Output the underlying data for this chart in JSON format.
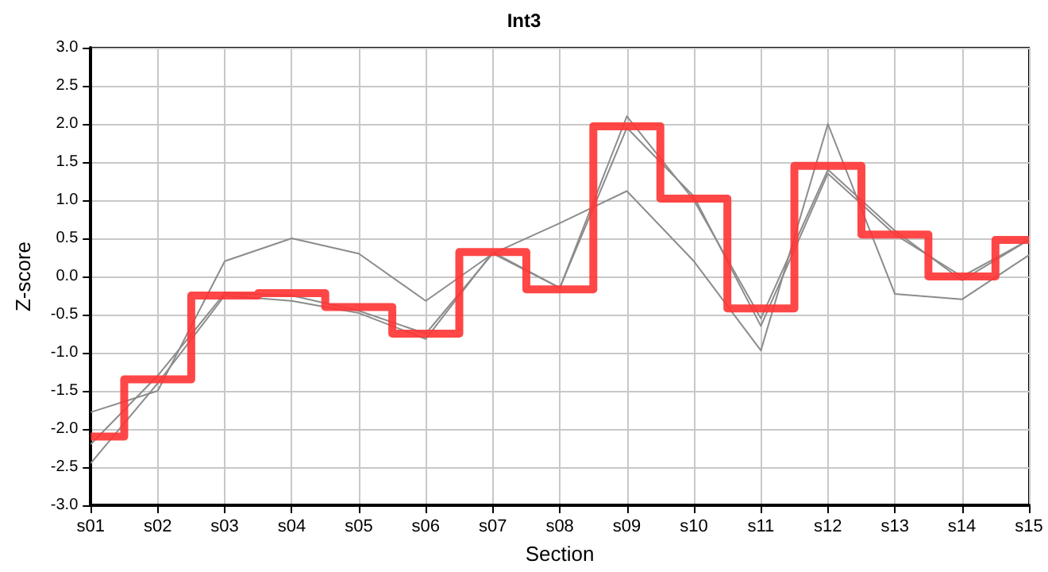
{
  "chart_data": {
    "type": "line",
    "title": "Int3",
    "xlabel": "Section",
    "ylabel": "Z-score",
    "categories": [
      "s01",
      "s02",
      "s03",
      "s04",
      "s05",
      "s06",
      "s07",
      "s08",
      "s09",
      "s10",
      "s11",
      "s12",
      "s13",
      "s14",
      "s15"
    ],
    "ylim": [
      -3,
      3
    ],
    "yticks": [
      {
        "value": -3,
        "label": "-3.0"
      },
      {
        "value": -2.5,
        "label": "-2.5"
      },
      {
        "value": -2,
        "label": "-2.0"
      },
      {
        "value": -1.5,
        "label": "-1.5"
      },
      {
        "value": -1,
        "label": "-1.0"
      },
      {
        "value": -0.5,
        "label": "-0.5"
      },
      {
        "value": 0,
        "label": "0.0"
      },
      {
        "value": 0.5,
        "label": "0.5"
      },
      {
        "value": 1,
        "label": "1.0"
      },
      {
        "value": 1.5,
        "label": "1.5"
      },
      {
        "value": 2,
        "label": "2.0"
      },
      {
        "value": 2.5,
        "label": "2.5"
      },
      {
        "value": 3,
        "label": "3.0"
      }
    ],
    "grid": true,
    "marker": "none",
    "line_style": "solid",
    "series": [
      {
        "color": "#8c8c8c",
        "values": [
          -1.78,
          -1.5,
          0.2,
          0.5,
          0.3,
          -0.32,
          0.3,
          0.7,
          1.12,
          0.2,
          -0.97,
          2.0,
          -0.23,
          -0.3,
          0.28
        ]
      },
      {
        "color": "#8c8c8c",
        "values": [
          -2.45,
          -1.4,
          -0.25,
          -0.32,
          -0.48,
          -0.82,
          0.32,
          -0.15,
          2.1,
          1.0,
          -0.55,
          1.4,
          0.6,
          -0.05,
          0.48
        ]
      },
      {
        "color": "#8c8c8c",
        "values": [
          -2.2,
          -1.3,
          -0.22,
          -0.25,
          -0.45,
          -0.75,
          0.3,
          -0.15,
          1.95,
          1.05,
          -0.65,
          1.35,
          0.55,
          0.0,
          0.48
        ]
      },
      {
        "type": "step",
        "color": "#ff3333",
        "values": [
          -2.1,
          -1.35,
          -0.25,
          -0.22,
          -0.4,
          -0.75,
          0.32,
          -0.17,
          1.97,
          1.02,
          -0.42,
          1.45,
          0.55,
          0.0,
          0.48
        ]
      }
    ]
  }
}
